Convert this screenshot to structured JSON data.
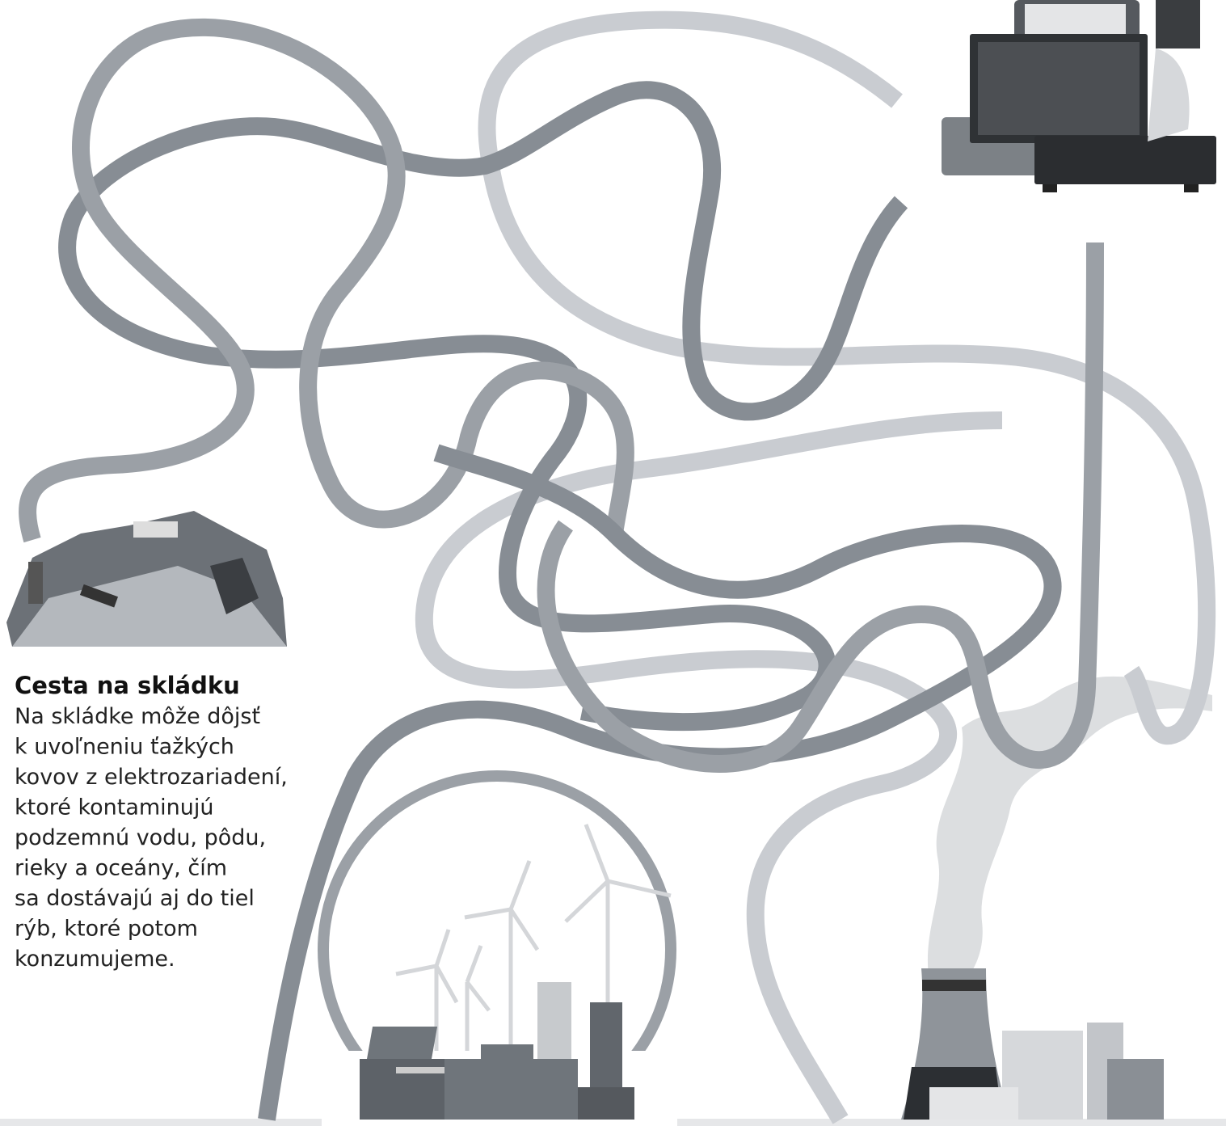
{
  "caption": {
    "title": "Cesta na skládku",
    "lines": [
      "Na skládke môže dôjsť",
      "k uvoľneniu ťažkých",
      "kovov z elektrozariadení,",
      "ktoré kontaminujú",
      "podzemnú vodu, pôdu,",
      "rieky a oceány, čím",
      "sa dostávajú aj do tiel",
      "rýb, ktoré potom",
      "konzumujeme."
    ]
  }
}
